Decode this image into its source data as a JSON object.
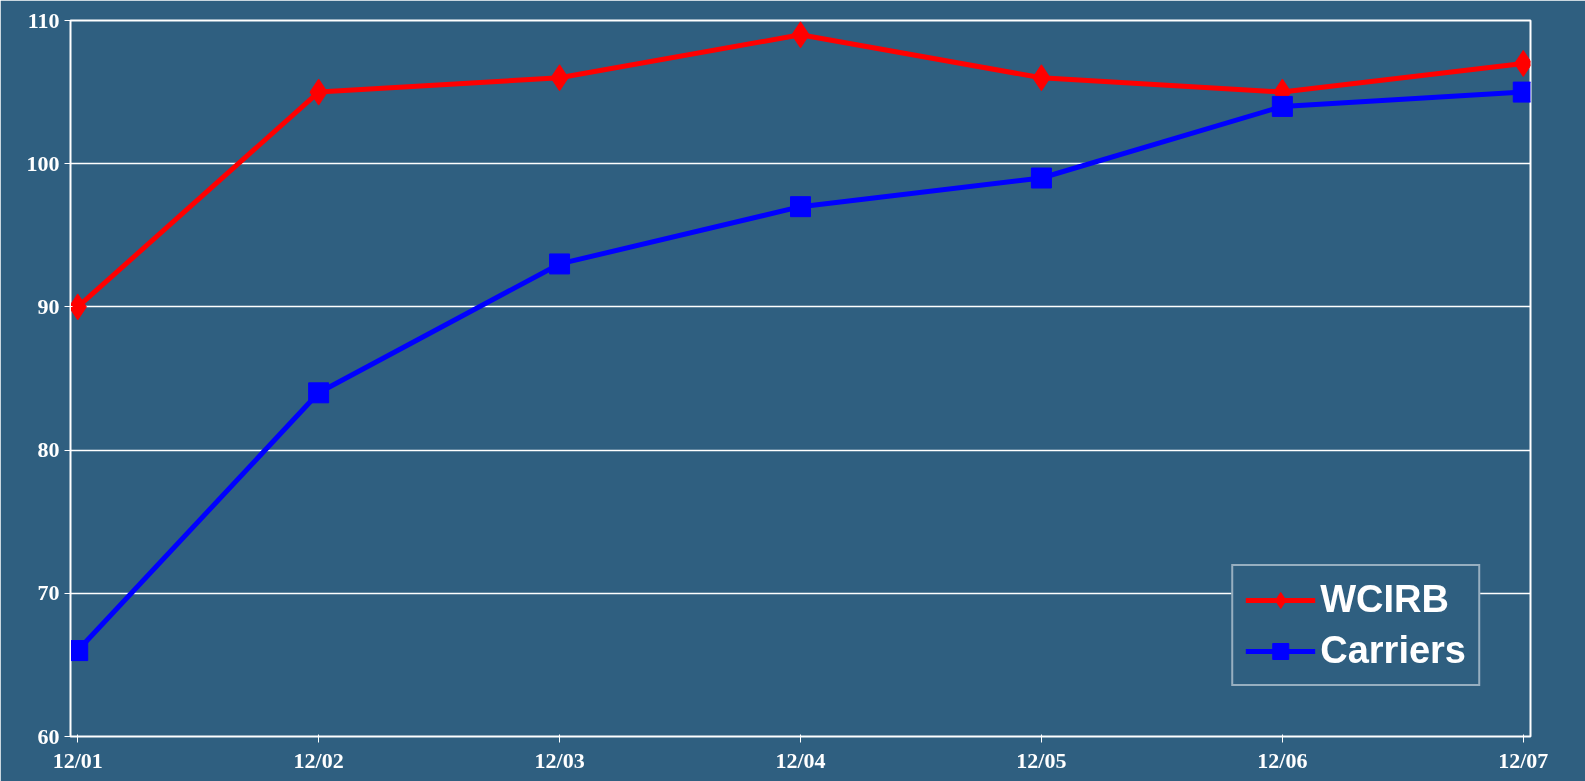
{
  "chart_data": {
    "type": "line",
    "categories": [
      "12/01",
      "12/02",
      "12/03",
      "12/04",
      "12/05",
      "12/06",
      "12/07"
    ],
    "series": [
      {
        "name": "WCIRB",
        "color": "#ff0000",
        "marker": "diamond",
        "values": [
          90,
          105,
          106,
          109,
          106,
          105,
          107
        ]
      },
      {
        "name": "Carriers",
        "color": "#0000ff",
        "marker": "square",
        "values": [
          66,
          84,
          93,
          97,
          99,
          104,
          105
        ]
      }
    ],
    "ylim": [
      60,
      110
    ],
    "yticks": [
      60,
      70,
      80,
      90,
      100,
      110
    ],
    "grid": "y",
    "legend": "bottom right",
    "line_style": "solid"
  }
}
